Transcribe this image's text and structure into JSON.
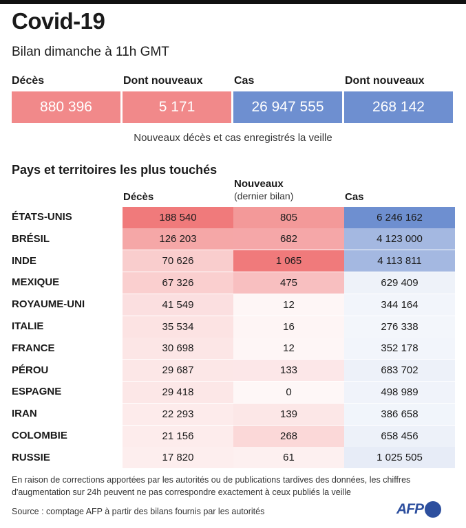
{
  "header": {
    "title": "Covid-19",
    "subtitle": "Bilan dimanche à 11h GMT"
  },
  "summary": [
    {
      "label": "Décès",
      "value": "880 396",
      "color": "#f1898a"
    },
    {
      "label": "Dont nouveaux",
      "value": "5 171",
      "color": "#f1898a"
    },
    {
      "label": "Cas",
      "value": "26 947 555",
      "color": "#6e8fd0"
    },
    {
      "label": "Dont nouveaux",
      "value": "268 142",
      "color": "#6e8fd0"
    }
  ],
  "summary_note": "Nouveaux décès et cas enregistrés la veille",
  "table": {
    "title": "Pays et territoires les plus touchés",
    "col_deaths": "Décès",
    "col_new": "Nouveaux",
    "col_new_sub": "(dernier bilan)",
    "col_cases": "Cas"
  },
  "chart_data": {
    "type": "table",
    "title": "Pays et territoires les plus touchés",
    "columns": [
      "Décès",
      "Nouveaux (dernier bilan)",
      "Cas"
    ],
    "rows": [
      {
        "country": "ÉTATS-UNIS",
        "deaths": 188540,
        "new": 805,
        "cases": 6246162,
        "deaths_text": "188 540",
        "new_text": "805",
        "cases_text": "6 246 162"
      },
      {
        "country": "BRÉSIL",
        "deaths": 126203,
        "new": 682,
        "cases": 4123000,
        "deaths_text": "126 203",
        "new_text": "682",
        "cases_text": "4 123 000"
      },
      {
        "country": "INDE",
        "deaths": 70626,
        "new": 1065,
        "cases": 4113811,
        "deaths_text": "70 626",
        "new_text": "1 065",
        "cases_text": "4 113 811"
      },
      {
        "country": "MEXIQUE",
        "deaths": 67326,
        "new": 475,
        "cases": 629409,
        "deaths_text": "67 326",
        "new_text": "475",
        "cases_text": "629 409"
      },
      {
        "country": "ROYAUME-UNI",
        "deaths": 41549,
        "new": 12,
        "cases": 344164,
        "deaths_text": "41 549",
        "new_text": "12",
        "cases_text": "344 164"
      },
      {
        "country": "ITALIE",
        "deaths": 35534,
        "new": 16,
        "cases": 276338,
        "deaths_text": "35 534",
        "new_text": "16",
        "cases_text": "276 338"
      },
      {
        "country": "FRANCE",
        "deaths": 30698,
        "new": 12,
        "cases": 352178,
        "deaths_text": "30 698",
        "new_text": "12",
        "cases_text": "352 178"
      },
      {
        "country": "PÉROU",
        "deaths": 29687,
        "new": 133,
        "cases": 683702,
        "deaths_text": "29 687",
        "new_text": "133",
        "cases_text": "683 702"
      },
      {
        "country": "ESPAGNE",
        "deaths": 29418,
        "new": 0,
        "cases": 498989,
        "deaths_text": "29 418",
        "new_text": "0",
        "cases_text": "498 989"
      },
      {
        "country": "IRAN",
        "deaths": 22293,
        "new": 139,
        "cases": 386658,
        "deaths_text": "22 293",
        "new_text": "139",
        "cases_text": "386 658"
      },
      {
        "country": "COLOMBIE",
        "deaths": 21156,
        "new": 268,
        "cases": 658456,
        "deaths_text": "21 156",
        "new_text": "268",
        "cases_text": "658 456"
      },
      {
        "country": "RUSSIE",
        "deaths": 17820,
        "new": 61,
        "cases": 1025505,
        "deaths_text": "17 820",
        "new_text": "61",
        "cases_text": "1 025 505"
      }
    ],
    "colors": {
      "deaths_new": "#f07a7b",
      "cases": "#6e8fd0"
    }
  },
  "footer": {
    "note": "En raison de corrections apportées par les autorités ou de publications tardives des données, les chiffres d'augmentation sur 24h peuvent ne pas correspondre exactement à ceux publiés la veille",
    "source": "Source : comptage AFP à partir des bilans fournis par les autorités",
    "logo": "AFP"
  }
}
